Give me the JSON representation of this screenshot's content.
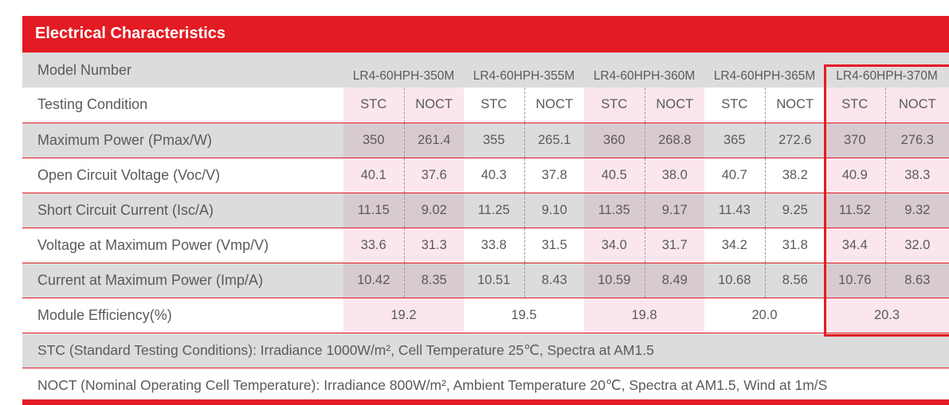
{
  "title": "Electrical Characteristics",
  "row_labels": {
    "model": "Model Number",
    "testing": "Testing Condition",
    "pmax": "Maximum Power (Pmax/W)",
    "voc": "Open Circuit Voltage (Voc/V)",
    "isc": "Short Circuit Current (Isc/A)",
    "vmp": "Voltage at Maximum Power (Vmp/V)",
    "imp": "Current at Maximum Power (Imp/A)",
    "eff": "Module Efficiency(%)"
  },
  "models": [
    {
      "name": "LR4-60HPH-350M",
      "stc": "STC",
      "noct": "NOCT",
      "pmax": [
        "350",
        "261.4"
      ],
      "voc": [
        "40.1",
        "37.6"
      ],
      "isc": [
        "11.15",
        "9.02"
      ],
      "vmp": [
        "33.6",
        "31.3"
      ],
      "imp": [
        "10.42",
        "8.35"
      ],
      "eff": "19.2"
    },
    {
      "name": "LR4-60HPH-355M",
      "stc": "STC",
      "noct": "NOCT",
      "pmax": [
        "355",
        "265.1"
      ],
      "voc": [
        "40.3",
        "37.8"
      ],
      "isc": [
        "11.25",
        "9.10"
      ],
      "vmp": [
        "33.8",
        "31.5"
      ],
      "imp": [
        "10.51",
        "8.43"
      ],
      "eff": "19.5"
    },
    {
      "name": "LR4-60HPH-360M",
      "stc": "STC",
      "noct": "NOCT",
      "pmax": [
        "360",
        "268.8"
      ],
      "voc": [
        "40.5",
        "38.0"
      ],
      "isc": [
        "11.35",
        "9.17"
      ],
      "vmp": [
        "34.0",
        "31.7"
      ],
      "imp": [
        "10.59",
        "8.49"
      ],
      "eff": "19.8"
    },
    {
      "name": "LR4-60HPH-365M",
      "stc": "STC",
      "noct": "NOCT",
      "pmax": [
        "365",
        "272.6"
      ],
      "voc": [
        "40.7",
        "38.2"
      ],
      "isc": [
        "11.43",
        "9.25"
      ],
      "vmp": [
        "34.2",
        "31.8"
      ],
      "imp": [
        "10.68",
        "8.56"
      ],
      "eff": "20.0"
    },
    {
      "name": "LR4-60HPH-370M",
      "stc": "STC",
      "noct": "NOCT",
      "pmax": [
        "370",
        "276.3"
      ],
      "voc": [
        "40.9",
        "38.3"
      ],
      "isc": [
        "11.52",
        "9.32"
      ],
      "vmp": [
        "34.4",
        "32.0"
      ],
      "imp": [
        "10.76",
        "8.63"
      ],
      "eff": "20.3"
    }
  ],
  "notes": {
    "stc": "STC (Standard Testing Conditions): Irradiance 1000W/m², Cell Temperature 25℃, Spectra at AM1.5",
    "noct": "NOCT (Nominal Operating Cell Temperature): Irradiance 800W/m², Ambient Temperature 20℃, Spectra at AM1.5, Wind at 1m/S"
  },
  "colors": {
    "accent": "#e31b23",
    "row_shade": "#dcdcdd",
    "pink": "#fbe6ee"
  }
}
